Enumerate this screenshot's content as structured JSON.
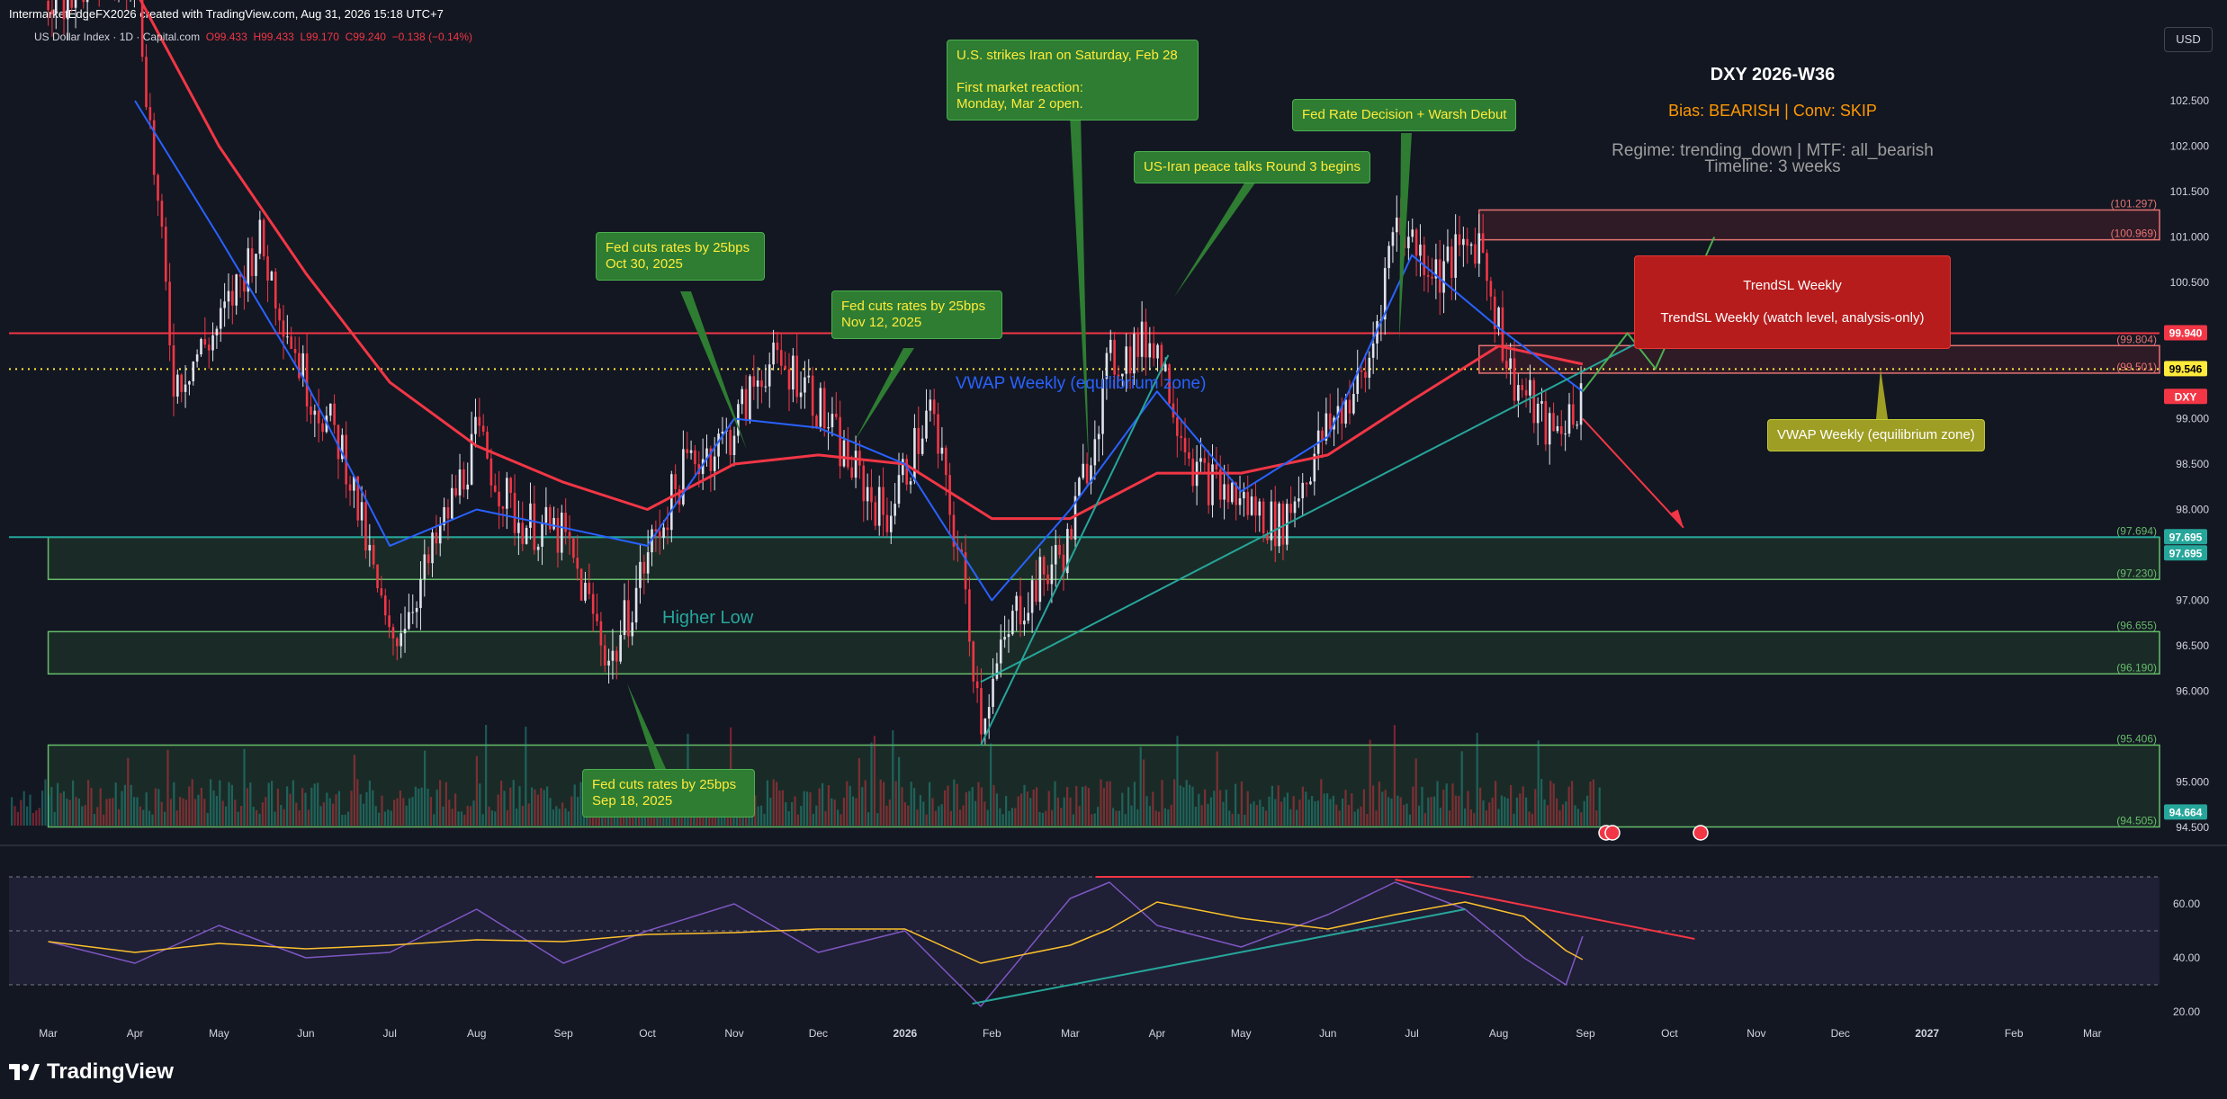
{
  "header": {
    "credit": "IntermarketEdgeFX2026 created with TradingView.com, Aug 31, 2026 15:18 UTC+7",
    "symbol_line": "US Dollar Index · 1D · Capital.com",
    "ohlc": {
      "o": "O99.433",
      "h": "H99.433",
      "l": "L99.170",
      "c": "C99.240",
      "chg": "−0.138 (−0.14%)"
    },
    "currency": "USD"
  },
  "info_box": {
    "title": "DXY 2026-W36",
    "bias": "Bias: BEARISH | Conv: SKIP",
    "regime": "Regime: trending_down | MTF: all_bearish",
    "timeline": "Timeline: 3 weeks"
  },
  "annotations": {
    "iran_strike": "U.S. strikes Iran on Saturday, Feb 28\n\nFirst market reaction:\nMonday, Mar 2 open.",
    "fed_warsh": "Fed Rate Decision + Warsh Debut",
    "peace_talks": "US-Iran peace talks Round 3 begins",
    "fed_oct": "Fed cuts rates by 25bps\nOct 30, 2025",
    "fed_nov": "Fed cuts rates by 25bps\nNov 12, 2025",
    "fed_sep": "Fed cuts rates by 25bps\nSep 18, 2025",
    "trendsl_1": "TrendSL Weekly",
    "trendsl_2": "TrendSL Weekly (watch level, analysis-only)",
    "vwap_label": "VWAP Weekly (equilibrium zone)",
    "vwap_box": "VWAP Weekly (equilibrium zone)",
    "higher_low": "Higher Low"
  },
  "price_axis": {
    "ticks": [
      "102.500",
      "102.000",
      "101.500",
      "101.000",
      "100.500",
      "99.000",
      "98.500",
      "98.000",
      "97.000",
      "96.500",
      "96.000",
      "95.000",
      "94.500"
    ],
    "badges": [
      {
        "label": "99.940",
        "price": 99.94,
        "color": "#f23645",
        "text_color": "#ffffff"
      },
      {
        "label": "99.546",
        "price": 99.546,
        "color": "#ffeb3b",
        "text_color": "#000000"
      },
      {
        "label": "DXY",
        "price": 99.24,
        "color": "#f23645",
        "text_color": "#ffffff"
      },
      {
        "label": "97.695",
        "price": 97.695,
        "color": "#26a69a",
        "text_color": "#ffffff"
      },
      {
        "label": "97.695",
        "price": 97.695,
        "color": "#26a69a",
        "text_color": "#ffffff"
      },
      {
        "label": "94.664",
        "price": 94.664,
        "color": "#26a69a",
        "text_color": "#ffffff"
      }
    ],
    "level_labels": [
      {
        "label": "(101.297)",
        "price": 101.297
      },
      {
        "label": "(100.969)",
        "price": 100.969
      },
      {
        "label": "(99.804)",
        "price": 99.804
      },
      {
        "label": "(99.501)",
        "price": 99.501
      },
      {
        "label": "(97.694)",
        "price": 97.694
      },
      {
        "label": "(97.230)",
        "price": 97.23
      },
      {
        "label": "(96.655)",
        "price": 96.655
      },
      {
        "label": "(96.190)",
        "price": 96.19
      },
      {
        "label": "(95.406)",
        "price": 95.406
      },
      {
        "label": "(94.505)",
        "price": 94.505
      }
    ]
  },
  "rsi_axis": {
    "ticks": [
      "60.00",
      "40.00",
      "20.00"
    ]
  },
  "time_axis": {
    "labels": [
      "Mar",
      "Apr",
      "May",
      "Jun",
      "Jul",
      "Aug",
      "Sep",
      "Oct",
      "Nov",
      "Dec",
      "2026",
      "Feb",
      "Mar",
      "Apr",
      "May",
      "Jun",
      "Jul",
      "Aug",
      "Sep",
      "Oct",
      "Nov",
      "Dec",
      "2027",
      "Feb",
      "Mar"
    ]
  },
  "footer": {
    "brand": "TradingView"
  },
  "colors": {
    "bg": "#131722",
    "up": "#26a69a",
    "down": "#f23645",
    "ema_red": "#f23645",
    "ema_blue": "#2962ff",
    "zone_green": "#4caf50",
    "zone_red": "#f23645",
    "rsi": "#7e57c2",
    "rsi_ma": "#fbc02d"
  },
  "chart_data": {
    "type": "candlestick",
    "title": "DXY 2026-W36",
    "symbol": "US Dollar Index",
    "timeframe": "1D",
    "ylim": [
      94.4,
      103.0
    ],
    "x_range": [
      "2025-03",
      "2027-03"
    ],
    "price_path": [
      {
        "t": "2025-03",
        "y": 103.6
      },
      {
        "t": "2025-04-01",
        "y": 104.0
      },
      {
        "t": "2025-04-15",
        "y": 99.4
      },
      {
        "t": "2025-05-01",
        "y": 100.0
      },
      {
        "t": "2025-05-15",
        "y": 101.0
      },
      {
        "t": "2025-06-01",
        "y": 99.4
      },
      {
        "t": "2025-06-15",
        "y": 98.6
      },
      {
        "t": "2025-07-01",
        "y": 96.5
      },
      {
        "t": "2025-07-15",
        "y": 97.4
      },
      {
        "t": "2025-08-01",
        "y": 98.8
      },
      {
        "t": "2025-08-15",
        "y": 97.9
      },
      {
        "t": "2025-09-01",
        "y": 97.7
      },
      {
        "t": "2025-09-18",
        "y": 96.3
      },
      {
        "t": "2025-10-01",
        "y": 97.5
      },
      {
        "t": "2025-10-15",
        "y": 98.5
      },
      {
        "t": "2025-10-30",
        "y": 98.8
      },
      {
        "t": "2025-11-12",
        "y": 99.6
      },
      {
        "t": "2025-11-25",
        "y": 99.5
      },
      {
        "t": "2025-12-10",
        "y": 98.6
      },
      {
        "t": "2025-12-25",
        "y": 97.9
      },
      {
        "t": "2026-01-10",
        "y": 99.1
      },
      {
        "t": "2026-01-22",
        "y": 97.2
      },
      {
        "t": "2026-01-28",
        "y": 95.7
      },
      {
        "t": "2026-02-10",
        "y": 96.9
      },
      {
        "t": "2026-02-28",
        "y": 97.6
      },
      {
        "t": "2026-03-15",
        "y": 99.6
      },
      {
        "t": "2026-03-31",
        "y": 99.9
      },
      {
        "t": "2026-04-15",
        "y": 98.4
      },
      {
        "t": "2026-05-01",
        "y": 98.1
      },
      {
        "t": "2026-05-15",
        "y": 97.8
      },
      {
        "t": "2026-06-01",
        "y": 98.9
      },
      {
        "t": "2026-06-15",
        "y": 99.5
      },
      {
        "t": "2026-06-25",
        "y": 101.2
      },
      {
        "t": "2026-07-10",
        "y": 100.6
      },
      {
        "t": "2026-07-25",
        "y": 101.0
      },
      {
        "t": "2026-08-05",
        "y": 99.5
      },
      {
        "t": "2026-08-20",
        "y": 98.8
      },
      {
        "t": "2026-08-31",
        "y": 99.24
      }
    ],
    "ema_red": [
      {
        "t": "2025-03",
        "y": 105.5
      },
      {
        "t": "2025-05-01",
        "y": 102.0
      },
      {
        "t": "2025-06-01",
        "y": 100.6
      },
      {
        "t": "2025-07-01",
        "y": 99.4
      },
      {
        "t": "2025-08-01",
        "y": 98.7
      },
      {
        "t": "2025-09-01",
        "y": 98.3
      },
      {
        "t": "2025-10-01",
        "y": 98.0
      },
      {
        "t": "2025-11-01",
        "y": 98.5
      },
      {
        "t": "2025-12-01",
        "y": 98.6
      },
      {
        "t": "2026-01-01",
        "y": 98.5
      },
      {
        "t": "2026-02-01",
        "y": 97.9
      },
      {
        "t": "2026-03-01",
        "y": 97.9
      },
      {
        "t": "2026-04-01",
        "y": 98.4
      },
      {
        "t": "2026-05-01",
        "y": 98.4
      },
      {
        "t": "2026-06-01",
        "y": 98.6
      },
      {
        "t": "2026-07-01",
        "y": 99.2
      },
      {
        "t": "2026-08-01",
        "y": 99.8
      },
      {
        "t": "2026-08-31",
        "y": 99.6
      }
    ],
    "ema_blue": [
      {
        "t": "2025-04-01",
        "y": 102.5
      },
      {
        "t": "2025-05-01",
        "y": 101.0
      },
      {
        "t": "2025-06-01",
        "y": 99.4
      },
      {
        "t": "2025-07-01",
        "y": 97.6
      },
      {
        "t": "2025-08-01",
        "y": 98.0
      },
      {
        "t": "2025-09-01",
        "y": 97.8
      },
      {
        "t": "2025-10-01",
        "y": 97.6
      },
      {
        "t": "2025-11-01",
        "y": 99.0
      },
      {
        "t": "2025-12-01",
        "y": 98.9
      },
      {
        "t": "2026-01-01",
        "y": 98.5
      },
      {
        "t": "2026-02-01",
        "y": 97.0
      },
      {
        "t": "2026-03-01",
        "y": 98.0
      },
      {
        "t": "2026-04-01",
        "y": 99.3
      },
      {
        "t": "2026-05-01",
        "y": 98.2
      },
      {
        "t": "2026-06-01",
        "y": 98.8
      },
      {
        "t": "2026-07-01",
        "y": 100.8
      },
      {
        "t": "2026-08-01",
        "y": 100.0
      },
      {
        "t": "2026-08-31",
        "y": 99.3
      }
    ],
    "zones": [
      {
        "name": "resistance-upper",
        "from": 100.969,
        "to": 101.297,
        "color": "red"
      },
      {
        "name": "resistance-lower",
        "from": 99.501,
        "to": 99.804,
        "color": "red"
      },
      {
        "name": "support-1",
        "from": 97.23,
        "to": 97.694,
        "color": "green"
      },
      {
        "name": "support-2",
        "from": 96.19,
        "to": 96.655,
        "color": "green"
      },
      {
        "name": "support-3",
        "from": 94.505,
        "to": 95.406,
        "color": "green"
      }
    ],
    "levels": [
      {
        "name": "trendsl-weekly",
        "price": 99.94,
        "style": "solid-red"
      },
      {
        "name": "vwap-weekly",
        "price": 99.546,
        "style": "dotted-yellow"
      },
      {
        "name": "support-line",
        "price": 97.695,
        "style": "solid-teal"
      }
    ],
    "rsi": {
      "ylim": [
        20,
        70
      ],
      "bands": [
        30,
        50,
        70
      ],
      "values": [
        {
          "t": "2025-03",
          "y": 46
        },
        {
          "t": "2025-04",
          "y": 38
        },
        {
          "t": "2025-05",
          "y": 52
        },
        {
          "t": "2025-06",
          "y": 40
        },
        {
          "t": "2025-07",
          "y": 42
        },
        {
          "t": "2025-08",
          "y": 58
        },
        {
          "t": "2025-09",
          "y": 38
        },
        {
          "t": "2025-10",
          "y": 50
        },
        {
          "t": "2025-11",
          "y": 60
        },
        {
          "t": "2025-12",
          "y": 42
        },
        {
          "t": "2026-01",
          "y": 50
        },
        {
          "t": "2026-01-28",
          "y": 22
        },
        {
          "t": "2026-03",
          "y": 62
        },
        {
          "t": "2026-03-15",
          "y": 68
        },
        {
          "t": "2026-04",
          "y": 52
        },
        {
          "t": "2026-05",
          "y": 44
        },
        {
          "t": "2026-06",
          "y": 56
        },
        {
          "t": "2026-06-25",
          "y": 68
        },
        {
          "t": "2026-07-20",
          "y": 58
        },
        {
          "t": "2026-08-10",
          "y": 40
        },
        {
          "t": "2026-08-25",
          "y": 30
        },
        {
          "t": "2026-08-31",
          "y": 48
        }
      ]
    }
  }
}
